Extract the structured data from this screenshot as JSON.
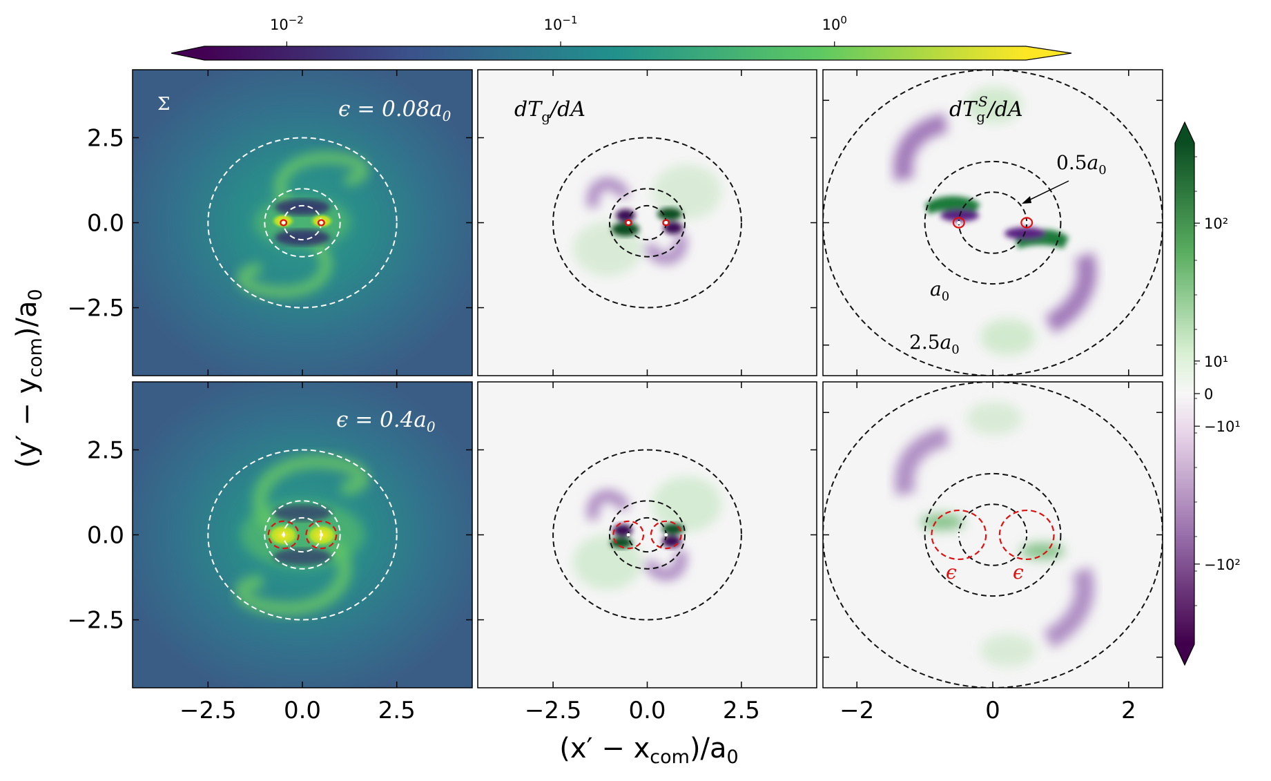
{
  "chart_data": {
    "type": "heatmap",
    "top_colorbar": {
      "scale": "log",
      "ticks": [
        {
          "base": "10",
          "exp": "−2",
          "value": 0.01
        },
        {
          "base": "10",
          "exp": "−1",
          "value": 0.1
        },
        {
          "base": "10",
          "exp": "0",
          "value": 1
        }
      ],
      "range": [
        0.005,
        5
      ],
      "colormap": "viridis",
      "extend": "both"
    },
    "right_colorbar": {
      "scale": "symlog",
      "ticks": [
        "10²",
        "10¹",
        "0",
        "−10¹",
        "−10²"
      ],
      "tick_values": [
        100,
        10,
        0,
        -10,
        -100
      ],
      "colormap": "PRGn",
      "extend": "both"
    },
    "xlabel": "(x′ − x_com)/a₀",
    "ylabel": "(y′ − y_com)/a₀",
    "axes": {
      "col1_xticks": [
        "−2.5",
        "0.0",
        "2.5"
      ],
      "col2_xticks": [
        "−2.5",
        "0.0",
        "2.5"
      ],
      "col3_xticks": [
        "−2",
        "0",
        "2"
      ],
      "yticks": [
        "2.5",
        "0.0",
        "−2.5"
      ],
      "xlim": [
        -4.5,
        4.5
      ],
      "ylim": [
        -4.5,
        4.5
      ],
      "col3_xlim": [
        -2.5,
        2.5
      ],
      "col3_ylim": [
        -2.5,
        2.5
      ]
    },
    "panels": [
      {
        "row": 1,
        "col": 1,
        "quantity": "Σ",
        "epsilon_label": "ϵ = 0.08a₀",
        "circles": [
          0.5,
          1.0,
          2.5
        ],
        "softening": 0.08
      },
      {
        "row": 1,
        "col": 2,
        "quantity": "dT_g/dA",
        "circles": [
          0.5,
          1.0,
          2.5
        ],
        "softening": 0.08
      },
      {
        "row": 1,
        "col": 3,
        "quantity": "dT_g^S/dA",
        "circles": [
          0.5,
          1.0,
          2.5
        ],
        "softening": 0.08
      },
      {
        "row": 2,
        "col": 1,
        "epsilon_label": "ϵ = 0.4a₀",
        "circles": [
          0.5,
          1.0,
          2.5
        ],
        "softening": 0.4
      },
      {
        "row": 2,
        "col": 2,
        "circles": [
          0.5,
          1.0,
          2.5
        ],
        "softening": 0.4
      },
      {
        "row": 2,
        "col": 3,
        "circles": [
          0.5,
          1.0,
          2.5
        ],
        "softening": 0.4
      }
    ],
    "binary_positions": [
      [
        -0.5,
        0.0
      ],
      [
        0.5,
        0.0
      ]
    ],
    "annotations": [
      {
        "text": "0.5a₀",
        "panel": "r1c3"
      },
      {
        "text": "a₀",
        "panel": "r1c3"
      },
      {
        "text": "2.5a₀",
        "panel": "r1c3"
      },
      {
        "text": "ϵ",
        "panel": "r2c3"
      },
      {
        "text": "ϵ",
        "panel": "r2c3"
      }
    ]
  },
  "labels": {
    "panel_sigma": "Σ",
    "panel_eps1": "ϵ = 0.08",
    "panel_eps2": "ϵ = 0.4",
    "a0": "a",
    "a0_sub": "0",
    "dT_d": "dT",
    "dT_sub": "g",
    "dT_sup": "S",
    "dA": "/dA",
    "ann_half": "0.5",
    "ann_a0": "a",
    "ann_25": "2.5",
    "eps_sym": "ϵ",
    "xlabel_open": "(x′ − x",
    "xlabel_sub": "com",
    "xlabel_close": ")/a",
    "ylabel_open": "(y′ − y",
    "ylabel_sub": "com",
    "ylabel_close": ")/a"
  },
  "colors": {
    "viridis": [
      "#440154",
      "#3b528b",
      "#21918c",
      "#5ec962",
      "#fde725"
    ],
    "prgn": [
      "#40004b",
      "#9970ab",
      "#f7f7f7",
      "#a6dba0",
      "#00441b"
    ],
    "bg_sigma": "#356e8a",
    "bg_torque": "#f5f5f5",
    "circle_white": "#ffffff",
    "circle_black": "#111111",
    "softening_red": "#e01010"
  }
}
